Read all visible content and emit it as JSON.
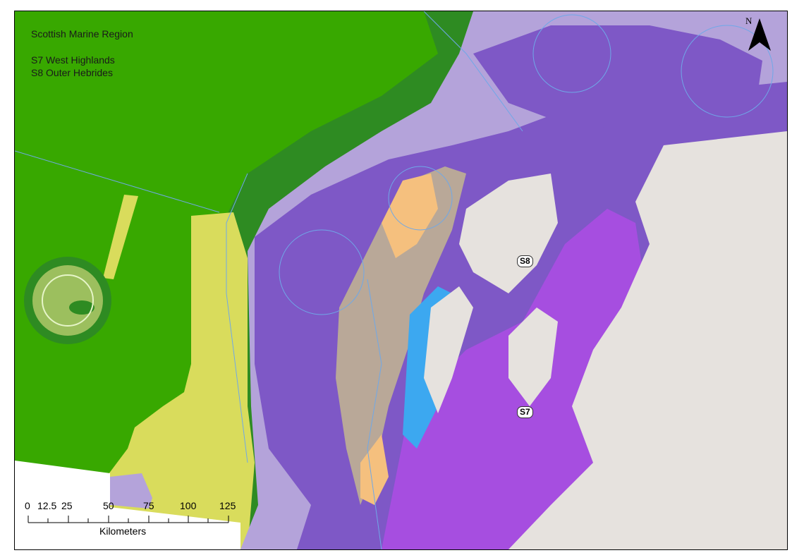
{
  "map": {
    "title": "Scottish Marine Region",
    "regions": [
      "S7 West Highlands",
      "S8 Outer Hebrides"
    ],
    "labels": [
      {
        "code": "S8"
      },
      {
        "code": "S7"
      }
    ],
    "north_arrow": "N",
    "scale_bar": {
      "ticks": [
        "0",
        "12.5",
        "25",
        "50",
        "75",
        "100",
        "125"
      ],
      "unit": "Kilometers"
    },
    "colors": {
      "deep_green": "#38a800",
      "dark_green": "#2e8b22",
      "yellow": "#d9dc5c",
      "pale_green": "#e6f5c8",
      "lavender": "#b4a3da",
      "purple": "#7e58c6",
      "bright_purple": "#a64ee0",
      "sand": "#f5c07e",
      "taupe": "#b9a898",
      "blue": "#3ca8f0",
      "land": "#e6e2de"
    }
  }
}
